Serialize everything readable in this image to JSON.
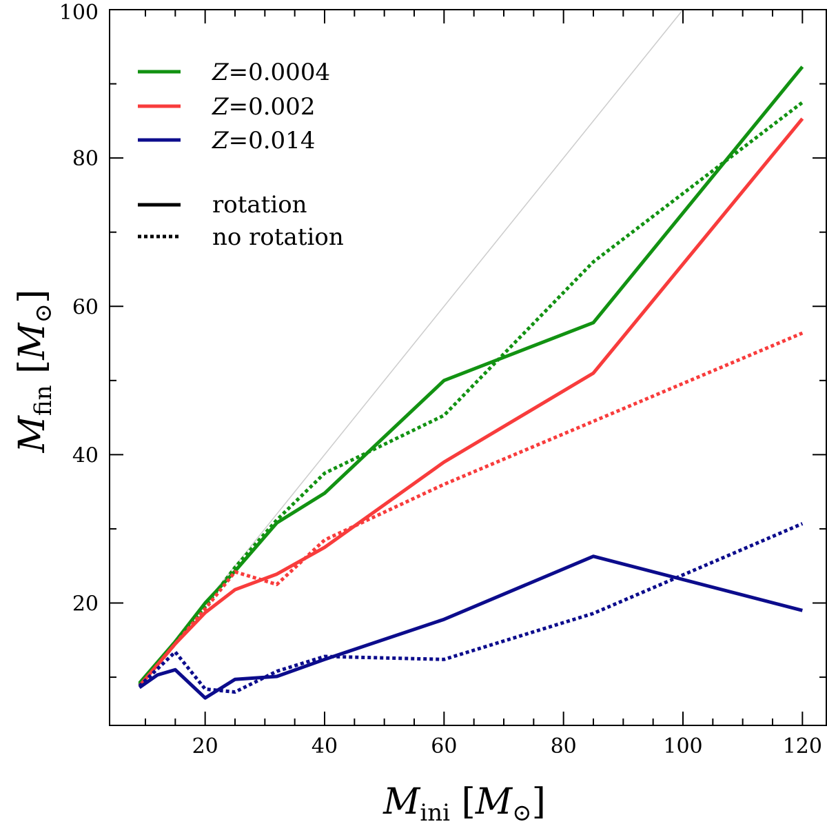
{
  "chart_data": {
    "type": "line",
    "title": "",
    "xlabel": {
      "main": "M",
      "sub": "ini",
      "unit_main": "M",
      "unit_sub": "⊙"
    },
    "ylabel": {
      "main": "M",
      "sub": "fin",
      "unit_main": "M",
      "unit_sub": "⊙"
    },
    "xlim": [
      4,
      124
    ],
    "ylim": [
      3.5,
      100
    ],
    "x_ticks": [
      20,
      40,
      60,
      80,
      100,
      120
    ],
    "y_ticks": [
      20,
      40,
      60,
      80,
      100
    ],
    "x_tick_labels": [
      "20",
      "40",
      "60",
      "80",
      "100",
      "120"
    ],
    "y_tick_labels": [
      "20",
      "40",
      "60",
      "80",
      "100"
    ],
    "grid": false,
    "legend_position": "top-left",
    "reference_line": {
      "name": "one-to-one",
      "x": [
        9,
        100
      ],
      "y": [
        9,
        100
      ],
      "color": "#cccccc"
    },
    "series": [
      {
        "name": "Z=0.0004 rotation",
        "metallicity": "0.0004",
        "style": "solid",
        "color": "#129212",
        "x": [
          9,
          15,
          20,
          25,
          32,
          40,
          60,
          85,
          120
        ],
        "y": [
          9.2,
          14.8,
          20.0,
          24.3,
          30.8,
          34.8,
          50.0,
          57.8,
          92.3
        ]
      },
      {
        "name": "Z=0.0004 no rotation",
        "metallicity": "0.0004",
        "style": "dotted",
        "color": "#129212",
        "x": [
          9,
          15,
          20,
          25,
          32,
          40,
          60,
          85,
          120
        ],
        "y": [
          9.0,
          14.8,
          19.5,
          24.8,
          31.2,
          37.5,
          45.3,
          66.0,
          87.5
        ]
      },
      {
        "name": "Z=0.002 rotation",
        "metallicity": "0.002",
        "style": "solid",
        "color": "#f83c3c",
        "x": [
          9,
          15,
          20,
          25,
          32,
          40,
          60,
          85,
          120
        ],
        "y": [
          8.8,
          14.5,
          18.7,
          21.8,
          23.9,
          27.5,
          39.0,
          51.0,
          85.3
        ]
      },
      {
        "name": "Z=0.002 no rotation",
        "metallicity": "0.002",
        "style": "dotted",
        "color": "#f83c3c",
        "x": [
          9,
          15,
          20,
          25,
          32,
          40,
          60,
          85,
          120
        ],
        "y": [
          8.8,
          14.5,
          19.2,
          24.2,
          22.5,
          28.5,
          36.0,
          44.5,
          56.4
        ]
      },
      {
        "name": "Z=0.014 rotation",
        "metallicity": "0.014",
        "style": "solid",
        "color": "#0c0c8c",
        "x": [
          9,
          12,
          15,
          20,
          25,
          32,
          40,
          60,
          85,
          120
        ],
        "y": [
          8.6,
          10.3,
          11.0,
          7.2,
          9.7,
          10.1,
          12.4,
          17.8,
          26.3,
          19.0
        ]
      },
      {
        "name": "Z=0.014 no rotation",
        "metallicity": "0.014",
        "style": "dotted",
        "color": "#0c0c8c",
        "x": [
          9,
          15,
          20,
          25,
          32,
          40,
          60,
          85,
          120
        ],
        "y": [
          8.8,
          13.4,
          8.4,
          8.0,
          10.8,
          12.8,
          12.4,
          18.6,
          30.7
        ]
      }
    ],
    "legend": {
      "metallicity_entries": [
        {
          "prefix": "Z",
          "label": "=0.0004",
          "color": "#129212"
        },
        {
          "prefix": "Z",
          "label": "=0.002",
          "color": "#f83c3c"
        },
        {
          "prefix": "Z",
          "label": "=0.014",
          "color": "#0c0c8c"
        }
      ],
      "style_entries": [
        {
          "label": "rotation",
          "style": "solid"
        },
        {
          "label": "no rotation",
          "style": "dotted"
        }
      ]
    }
  }
}
